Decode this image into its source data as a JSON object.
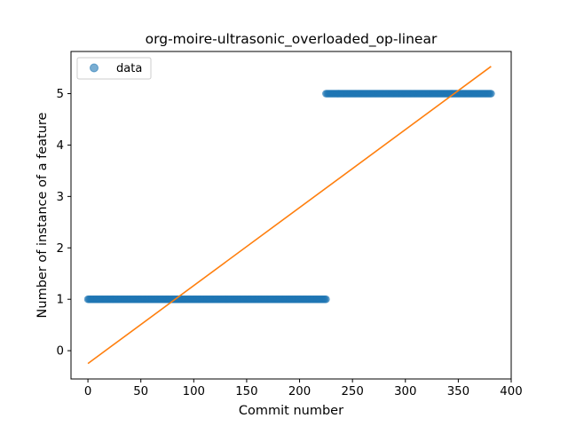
{
  "chart_data": {
    "type": "scatter",
    "title": "org-moire-ultrasonic_overloaded_op-linear",
    "xlabel": "Commit number",
    "ylabel": "Number of instance of a feature",
    "xlim": [
      -16,
      400
    ],
    "ylim": [
      -0.55,
      5.82
    ],
    "xticks": [
      0,
      50,
      100,
      150,
      200,
      250,
      300,
      350,
      400
    ],
    "yticks": [
      0,
      1,
      2,
      3,
      4,
      5
    ],
    "grid": false,
    "legend": {
      "position": "top-left",
      "entries": [
        "data"
      ]
    },
    "series": [
      {
        "name": "data",
        "kind": "scatter",
        "color": "#1f77b4",
        "segments": [
          {
            "x_start": 0,
            "x_end": 225,
            "y": 1
          },
          {
            "x_start": 225,
            "x_end": 381,
            "y": 5
          }
        ]
      },
      {
        "kind": "line",
        "color": "#ff7f0e",
        "x": [
          0,
          381
        ],
        "y": [
          -0.25,
          5.53
        ]
      }
    ]
  }
}
